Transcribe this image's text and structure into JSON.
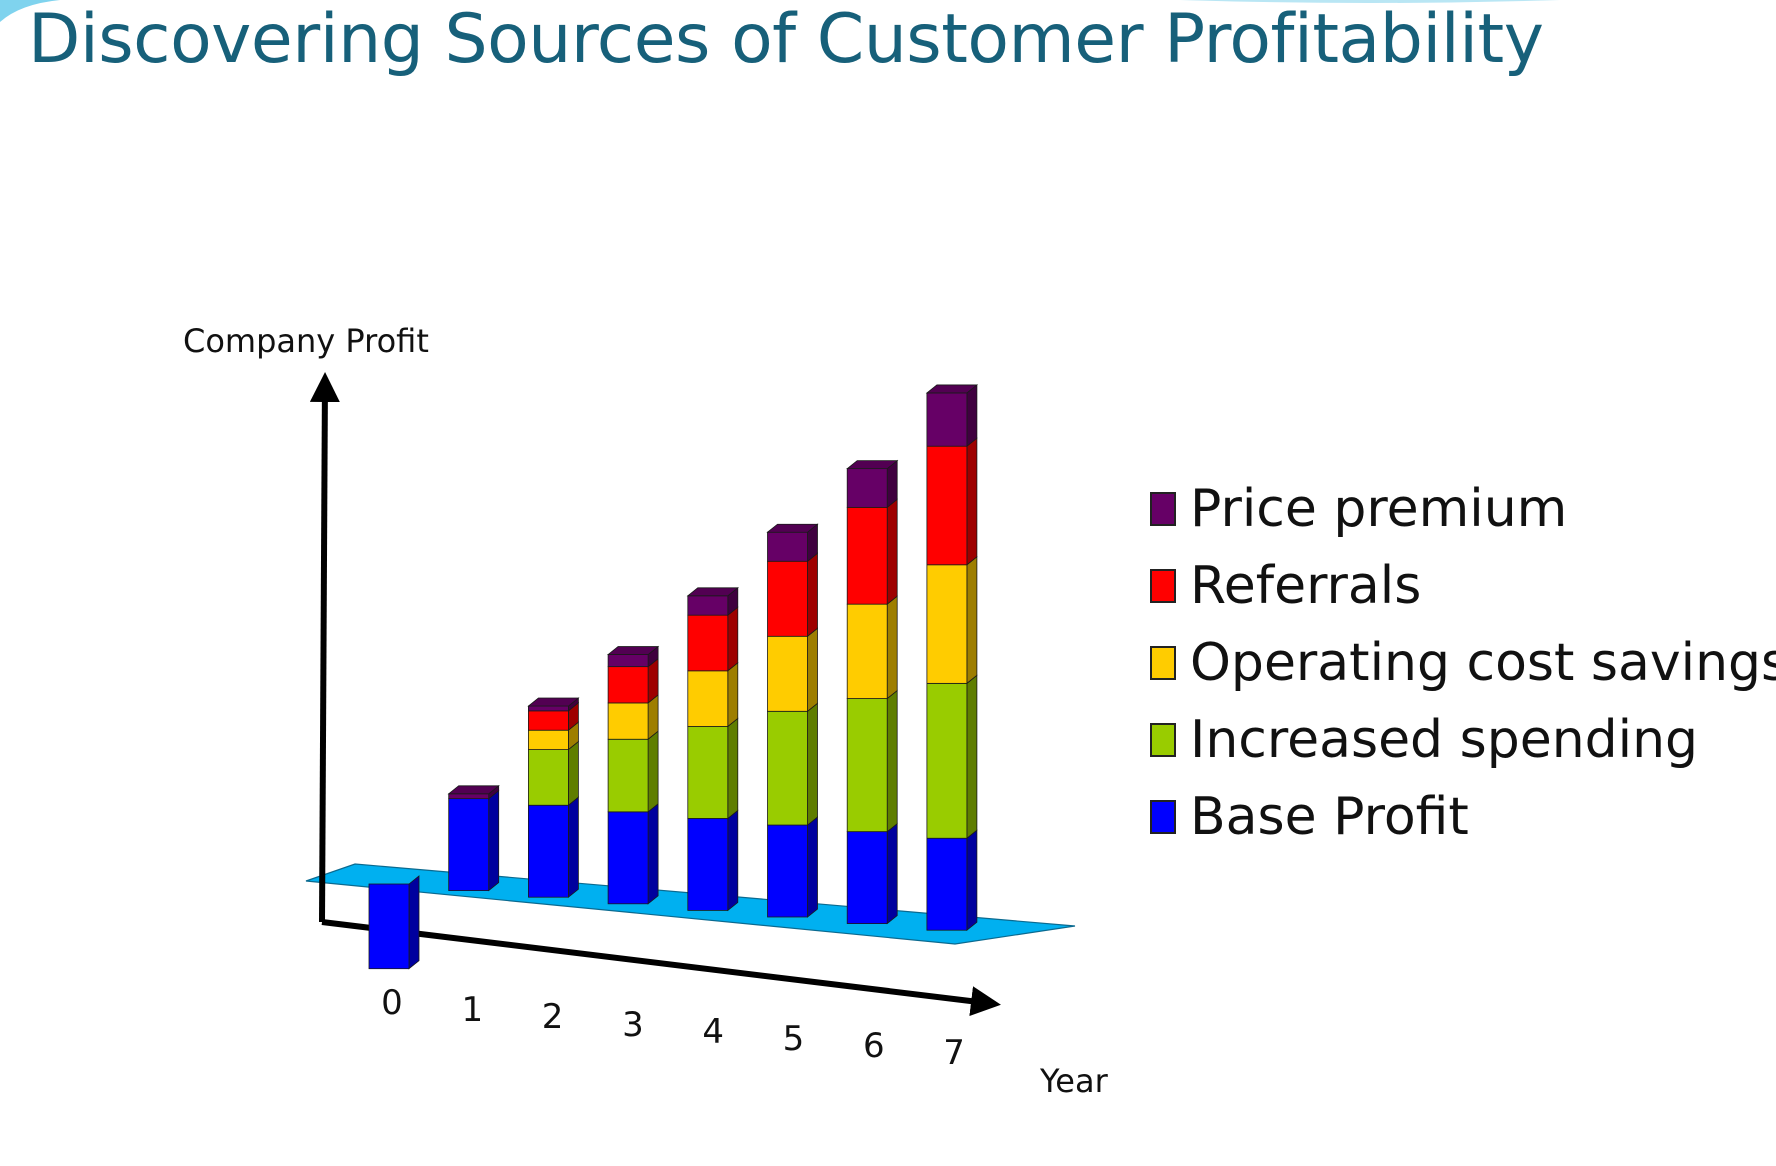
{
  "slide": {
    "title": "Discovering Sources of Customer Profitability"
  },
  "chart_data": {
    "type": "bar",
    "stacked": true,
    "style": "3d",
    "categories": [
      "0",
      "1",
      "2",
      "3",
      "4",
      "5",
      "6",
      "7"
    ],
    "series": [
      {
        "name": "Base Profit",
        "color": "#0000ff",
        "values": [
          -3.5,
          3.8,
          3.8,
          3.8,
          3.8,
          3.8,
          3.8,
          3.8
        ]
      },
      {
        "name": "Increased spending",
        "color": "#99cc00",
        "values": [
          0,
          0,
          2.3,
          3.0,
          3.8,
          4.7,
          5.5,
          6.4
        ]
      },
      {
        "name": "Operating cost savings",
        "color": "#ffcc00",
        "values": [
          0,
          0,
          0.8,
          1.5,
          2.3,
          3.1,
          3.9,
          4.9
        ]
      },
      {
        "name": "Referrals",
        "color": "#ff0000",
        "values": [
          0,
          0,
          0.8,
          1.5,
          2.3,
          3.1,
          4.0,
          4.9
        ]
      },
      {
        "name": "Price premium",
        "color": "#660066",
        "values": [
          0,
          0.2,
          0.2,
          0.5,
          0.8,
          1.2,
          1.6,
          2.2
        ]
      }
    ],
    "legend_order": [
      "Price premium",
      "Referrals",
      "Operating cost savings",
      "Increased spending",
      "Base Profit"
    ],
    "xlabel": "Year",
    "ylabel": "Company Profit",
    "ylim": [
      -4,
      22
    ],
    "grid": false,
    "legend": "right"
  }
}
